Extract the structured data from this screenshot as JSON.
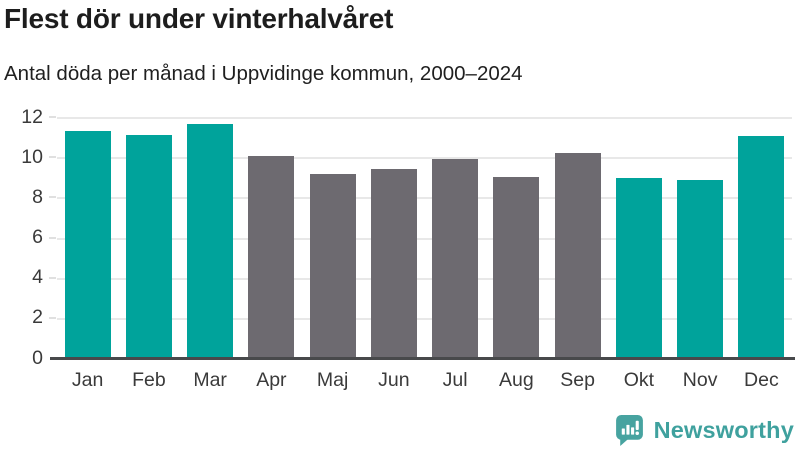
{
  "header": {
    "title": "Flest dör under vinterhalvåret",
    "subtitle": "Antal döda per månad i Uppvidinge kommun, 2000–2024"
  },
  "chart_data": {
    "type": "bar",
    "title": "Flest dör under vinterhalvåret",
    "subtitle": "Antal döda per månad i Uppvidinge kommun, 2000–2024",
    "categories": [
      "Jan",
      "Feb",
      "Mar",
      "Apr",
      "Maj",
      "Jun",
      "Jul",
      "Aug",
      "Sep",
      "Okt",
      "Nov",
      "Dec"
    ],
    "values": [
      11.3,
      11.1,
      11.65,
      10.05,
      9.15,
      9.4,
      9.9,
      9.0,
      10.2,
      8.95,
      8.85,
      11.05
    ],
    "xlabel": "",
    "ylabel": "",
    "ylim": [
      0,
      12
    ],
    "yticks": [
      0,
      2,
      4,
      6,
      8,
      10,
      12
    ],
    "grid": true,
    "legend_position": "none",
    "highlighted_categories": [
      "Jan",
      "Feb",
      "Mar",
      "Okt",
      "Nov",
      "Dec"
    ],
    "highlight_color": "#00a39b",
    "base_color": "#6d6a70",
    "gridline_color": "#e8e8e8",
    "axis_line_color": "#48494b",
    "tick_label_color": "#3a3a3a"
  },
  "branding": {
    "logo_text": "Newsworthy",
    "logo_icon": "bar-chart-speech-bubble-icon",
    "logo_color": "#3fa19e",
    "logo_icon_color": "#47a3a0"
  }
}
